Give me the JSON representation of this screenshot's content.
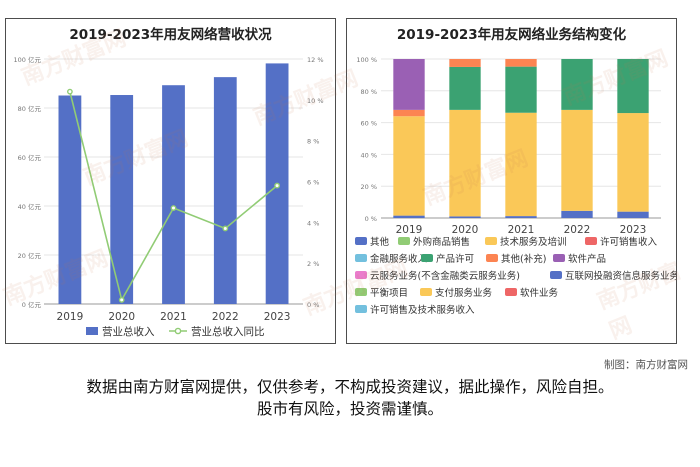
{
  "credit": "制图：南方财富网",
  "disclaimer_line1": "数据由南方财富网提供，仅供参考，不构成投资建议，据此操作，风险自担。",
  "disclaimer_line2": "股市有风险，投资需谨慎。",
  "watermark": "南方财富网",
  "chart_data": [
    {
      "type": "bar",
      "title": "2019-2023年用友网络营收状况",
      "categories": [
        "2019",
        "2020",
        "2021",
        "2022",
        "2023"
      ],
      "y_left": {
        "ticks": [
          "0 亿元",
          "20 亿元",
          "40 亿元",
          "60 亿元",
          "80 亿元",
          "100 亿元"
        ],
        "ylim": [
          0,
          100
        ]
      },
      "y_right": {
        "ticks": [
          "0 %",
          "2 %",
          "4 %",
          "6 %",
          "8 %",
          "10 %",
          "12 %"
        ],
        "ylim": [
          0,
          12
        ]
      },
      "series": [
        {
          "name": "营业总收入",
          "kind": "bar",
          "axis": "left",
          "color": "#5470c6",
          "values": [
            85.1,
            85.3,
            89.3,
            92.6,
            98.2
          ]
        },
        {
          "name": "营业总收入同比",
          "kind": "line",
          "axis": "right",
          "color": "#91cc75",
          "values": [
            10.4,
            0.2,
            4.7,
            3.7,
            5.8
          ]
        }
      ],
      "legend_position": "bottom"
    },
    {
      "type": "bar",
      "stacked": true,
      "title": "2019-2023年用友网络业务结构变化",
      "categories": [
        "2019",
        "2020",
        "2021",
        "2022",
        "2023"
      ],
      "y_ticks": [
        "0 %",
        "20 %",
        "40 %",
        "60 %",
        "80 %",
        "100 %"
      ],
      "ylim": [
        0,
        100
      ],
      "series": [
        {
          "name": "其他",
          "color": "#5470c6",
          "values": [
            1.5,
            1.0,
            1.2,
            4.5,
            4.0
          ]
        },
        {
          "name": "外购商品销售",
          "color": "#91cc75",
          "values": [
            0,
            0,
            0,
            0,
            0
          ]
        },
        {
          "name": "技术服务及培训",
          "color": "#fac858",
          "values": [
            62.5,
            67.0,
            65.0,
            63.5,
            62.0
          ]
        },
        {
          "name": "许可销售收入",
          "color": "#ee6666",
          "values": [
            0,
            0,
            0,
            0,
            0
          ]
        },
        {
          "name": "金融服务收入",
          "color": "#73c0de",
          "values": [
            0,
            0,
            0,
            0,
            0
          ]
        },
        {
          "name": "产品许可",
          "color": "#3ba272",
          "values": [
            0,
            27.0,
            29.0,
            32.0,
            34.0
          ]
        },
        {
          "name": "其他(补充)",
          "color": "#fc8452",
          "values": [
            4.0,
            5.0,
            4.8,
            0,
            0
          ]
        },
        {
          "name": "软件产品",
          "color": "#9a60b4",
          "values": [
            32.0,
            0,
            0,
            0,
            0
          ]
        },
        {
          "name": "云服务业务(不含金融类云服务业务)",
          "color": "#ea7ccc",
          "values": [
            0,
            0,
            0,
            0,
            0
          ]
        },
        {
          "name": "互联网投融资信息服务业务",
          "color": "#5470c6",
          "values": [
            0,
            0,
            0,
            0,
            0
          ]
        },
        {
          "name": "平衡项目",
          "color": "#91cc75",
          "values": [
            0,
            0,
            0,
            0,
            0
          ]
        },
        {
          "name": "支付服务业务",
          "color": "#fac858",
          "values": [
            0,
            0,
            0,
            0,
            0
          ]
        },
        {
          "name": "软件业务",
          "color": "#ee6666",
          "values": [
            0,
            0,
            0,
            0,
            0
          ]
        },
        {
          "name": "许可销售及技术服务收入",
          "color": "#73c0de",
          "values": [
            0,
            0,
            0,
            0,
            0
          ]
        }
      ],
      "legend_position": "bottom"
    }
  ]
}
